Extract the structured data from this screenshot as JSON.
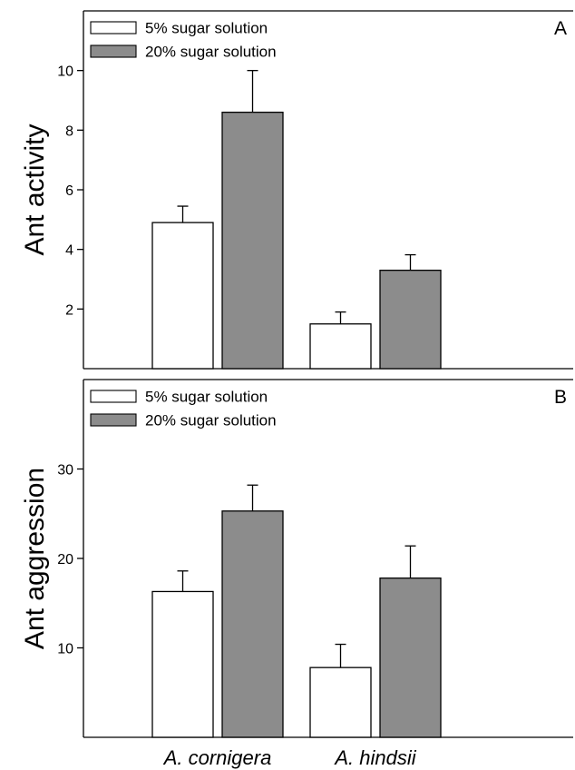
{
  "chart_data": [
    {
      "type": "bar",
      "panel_label": "A",
      "ylabel": "Ant activity",
      "categories": [
        "A. cornigera",
        "A. hindsii"
      ],
      "series": [
        {
          "name": "5% sugar solution",
          "values": [
            4.9,
            1.5
          ],
          "errors": [
            0.55,
            0.4
          ],
          "color": "#ffffff"
        },
        {
          "name": "20% sugar solution",
          "values": [
            8.6,
            3.3
          ],
          "errors": [
            1.4,
            0.52
          ],
          "color": "#8c8c8c"
        }
      ],
      "ylim": [
        0,
        12
      ],
      "yticks": [
        2,
        4,
        6,
        8,
        10
      ],
      "grid": false,
      "legend_position": "top-left"
    },
    {
      "type": "bar",
      "panel_label": "B",
      "ylabel": "Ant aggression",
      "categories": [
        "A. cornigera",
        "A. hindsii"
      ],
      "series": [
        {
          "name": "5% sugar solution",
          "values": [
            16.3,
            7.8
          ],
          "errors": [
            2.3,
            2.6
          ],
          "color": "#ffffff"
        },
        {
          "name": "20% sugar solution",
          "values": [
            25.3,
            17.8
          ],
          "errors": [
            2.9,
            3.6
          ],
          "color": "#8c8c8c"
        }
      ],
      "ylim": [
        0,
        40
      ],
      "yticks": [
        10,
        20,
        30
      ],
      "grid": false,
      "legend_position": "top-left"
    }
  ]
}
